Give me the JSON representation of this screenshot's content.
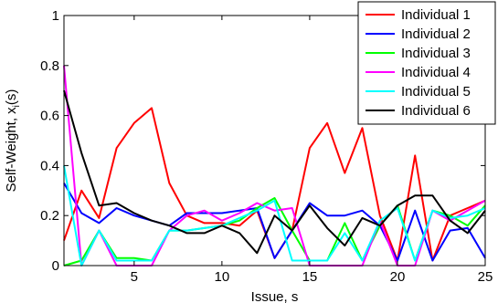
{
  "chart_data": {
    "type": "line",
    "xlabel": "Issue, s",
    "ylabel_main": "Self-Weight, x",
    "ylabel_sub": "i",
    "ylabel_tail": "(s)",
    "xlim": [
      1,
      25
    ],
    "ylim": [
      0,
      1
    ],
    "xticks": [
      5,
      10,
      15,
      20,
      25
    ],
    "yticks": [
      0,
      0.2,
      0.4,
      0.6,
      0.8,
      1
    ],
    "ytick_labels": [
      "0",
      "0.2",
      "0.4",
      "0.6",
      "0.8",
      "1"
    ],
    "grid": false,
    "legend_position": "top-right",
    "x": [
      1,
      2,
      3,
      4,
      5,
      6,
      7,
      8,
      9,
      10,
      11,
      12,
      13,
      14,
      15,
      16,
      17,
      18,
      19,
      20,
      21,
      22,
      23,
      24,
      25
    ],
    "series": [
      {
        "name": "Individual 1",
        "color": "#ff0000",
        "values": [
          0.1,
          0.3,
          0.19,
          0.47,
          0.57,
          0.63,
          0.33,
          0.2,
          0.17,
          0.17,
          0.16,
          0.22,
          0.03,
          0.14,
          0.47,
          0.57,
          0.37,
          0.55,
          0.2,
          0.02,
          0.44,
          0.02,
          0.2,
          0.23,
          0.26
        ]
      },
      {
        "name": "Individual 2",
        "color": "#0000ff",
        "values": [
          0.33,
          0.21,
          0.17,
          0.23,
          0.2,
          0.18,
          0.16,
          0.21,
          0.21,
          0.21,
          0.22,
          0.23,
          0.03,
          0.14,
          0.25,
          0.2,
          0.2,
          0.22,
          0.16,
          0.02,
          0.22,
          0.02,
          0.14,
          0.15,
          0.03
        ]
      },
      {
        "name": "Individual 3",
        "color": "#00ff00",
        "values": [
          0.0,
          0.02,
          0.14,
          0.03,
          0.03,
          0.02,
          0.14,
          0.14,
          0.15,
          0.16,
          0.18,
          0.23,
          0.27,
          0.14,
          0.02,
          0.02,
          0.17,
          0.02,
          0.16,
          0.24,
          0.02,
          0.22,
          0.2,
          0.16,
          0.24
        ]
      },
      {
        "name": "Individual 4",
        "color": "#ff00ff",
        "values": [
          0.8,
          0.0,
          0.14,
          0.0,
          0.0,
          0.0,
          0.14,
          0.2,
          0.22,
          0.18,
          0.21,
          0.25,
          0.22,
          0.23,
          0.0,
          0.0,
          0.0,
          0.0,
          0.18,
          0.0,
          0.0,
          0.22,
          0.18,
          0.22,
          0.26
        ]
      },
      {
        "name": "Individual 5",
        "color": "#00ffff",
        "values": [
          0.4,
          0.0,
          0.14,
          0.02,
          0.02,
          0.02,
          0.14,
          0.14,
          0.15,
          0.16,
          0.19,
          0.22,
          0.26,
          0.02,
          0.02,
          0.02,
          0.13,
          0.02,
          0.18,
          0.23,
          0.02,
          0.22,
          0.19,
          0.2,
          0.23
        ]
      },
      {
        "name": "Individual 6",
        "color": "#000000",
        "values": [
          0.7,
          0.45,
          0.24,
          0.25,
          0.21,
          0.18,
          0.16,
          0.13,
          0.13,
          0.16,
          0.13,
          0.05,
          0.2,
          0.14,
          0.24,
          0.15,
          0.08,
          0.19,
          0.16,
          0.24,
          0.28,
          0.28,
          0.18,
          0.13,
          0.22
        ]
      }
    ]
  }
}
